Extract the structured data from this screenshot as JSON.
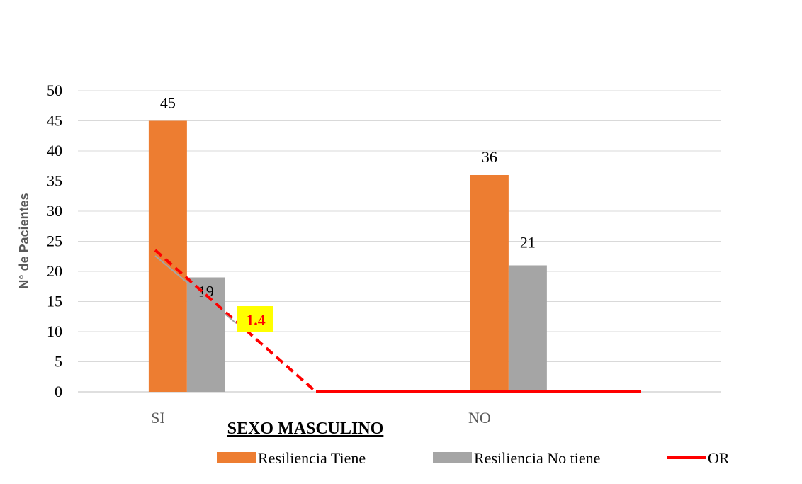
{
  "chart_data": {
    "type": "bar",
    "categories": [
      "SI",
      "NO"
    ],
    "series": [
      {
        "name": "Resiliencia Tiene",
        "values": [
          45,
          36
        ],
        "color": "#ED7D31"
      },
      {
        "name": "Resiliencia No tiene",
        "values": [
          19,
          21
        ],
        "color": "#A5A5A5"
      }
    ],
    "line_series": {
      "name": "OR",
      "color": "#FF0000",
      "value_label": "1.4",
      "value_label_bg": "#FFFF00"
    },
    "title": "",
    "xlabel": "SEXO MASCULINO",
    "ylabel": "N° de Pacientes",
    "ylim": [
      0,
      50
    ],
    "yticks": [
      0,
      5,
      10,
      15,
      20,
      25,
      30,
      35,
      40,
      45,
      50
    ],
    "grid": true,
    "legend_position": "bottom"
  }
}
